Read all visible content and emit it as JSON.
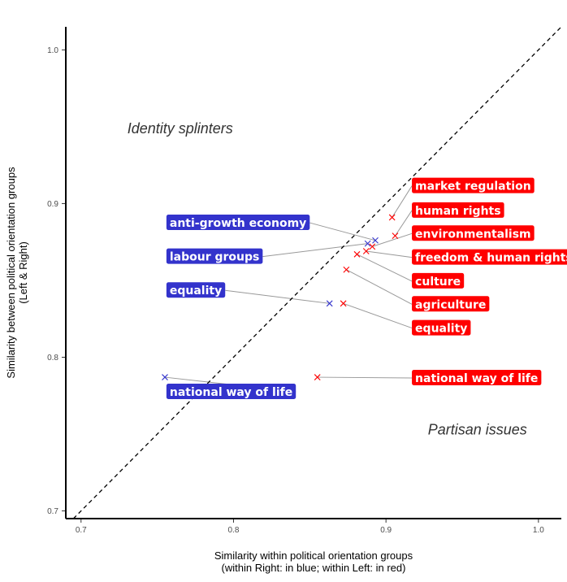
{
  "chart_data": {
    "type": "scatter",
    "xlabel": "Similarity within political orientation groups",
    "xlabel2": "(within Right: in blue; within Left: in red)",
    "ylabel": "Similarity between political orientation groups",
    "ylabel2": "(Left & Right)",
    "xlim": [
      0.69,
      1.015
    ],
    "ylim": [
      0.695,
      1.015
    ],
    "xticks": [
      0.7,
      0.8,
      0.9,
      1.0
    ],
    "yticks": [
      0.7,
      0.8,
      0.9,
      1.0
    ],
    "tick_labels": [
      "0.7",
      "0.8",
      "0.9",
      "1.0"
    ],
    "reference_line": "y = x (dashed)",
    "annotations": [
      {
        "text": "Identity splinters",
        "x": 0.765,
        "y": 0.949
      },
      {
        "text": "Partisan issues",
        "x": 0.96,
        "y": 0.753
      }
    ],
    "colors": {
      "left": "#ff0000",
      "right": "#3333cc",
      "connector": "#999999"
    },
    "series": [
      {
        "name": "within Right",
        "color": "#3333cc",
        "points": [
          {
            "label": "anti-growth economy",
            "x": 0.893,
            "y": 0.876,
            "label_x": 0.756,
            "label_y": 0.8875
          },
          {
            "label": "labour groups",
            "x": 0.888,
            "y": 0.874,
            "label_x": 0.756,
            "label_y": 0.8655
          },
          {
            "label": "equality",
            "x": 0.863,
            "y": 0.835,
            "label_x": 0.756,
            "label_y": 0.8435
          },
          {
            "label": "national way of life",
            "x": 0.755,
            "y": 0.787,
            "label_x": 0.756,
            "label_y": 0.7775
          }
        ]
      },
      {
        "name": "within Left",
        "color": "#ff0000",
        "points": [
          {
            "label": "market regulation",
            "x": 0.904,
            "y": 0.891,
            "label_x": 0.917,
            "label_y": 0.9115
          },
          {
            "label": "human rights",
            "x": 0.906,
            "y": 0.879,
            "label_x": 0.917,
            "label_y": 0.8955
          },
          {
            "label": "environmentalism",
            "x": 0.891,
            "y": 0.872,
            "label_x": 0.917,
            "label_y": 0.8805
          },
          {
            "label": "freedom & human rights",
            "x": 0.887,
            "y": 0.869,
            "label_x": 0.917,
            "label_y": 0.865
          },
          {
            "label": "culture",
            "x": 0.881,
            "y": 0.867,
            "label_x": 0.917,
            "label_y": 0.8495
          },
          {
            "label": "agriculture",
            "x": 0.874,
            "y": 0.857,
            "label_x": 0.917,
            "label_y": 0.8345
          },
          {
            "label": "equality",
            "x": 0.872,
            "y": 0.835,
            "label_x": 0.917,
            "label_y": 0.819
          },
          {
            "label": "national way of life",
            "x": 0.855,
            "y": 0.787,
            "label_x": 0.917,
            "label_y": 0.7865
          }
        ]
      }
    ]
  }
}
